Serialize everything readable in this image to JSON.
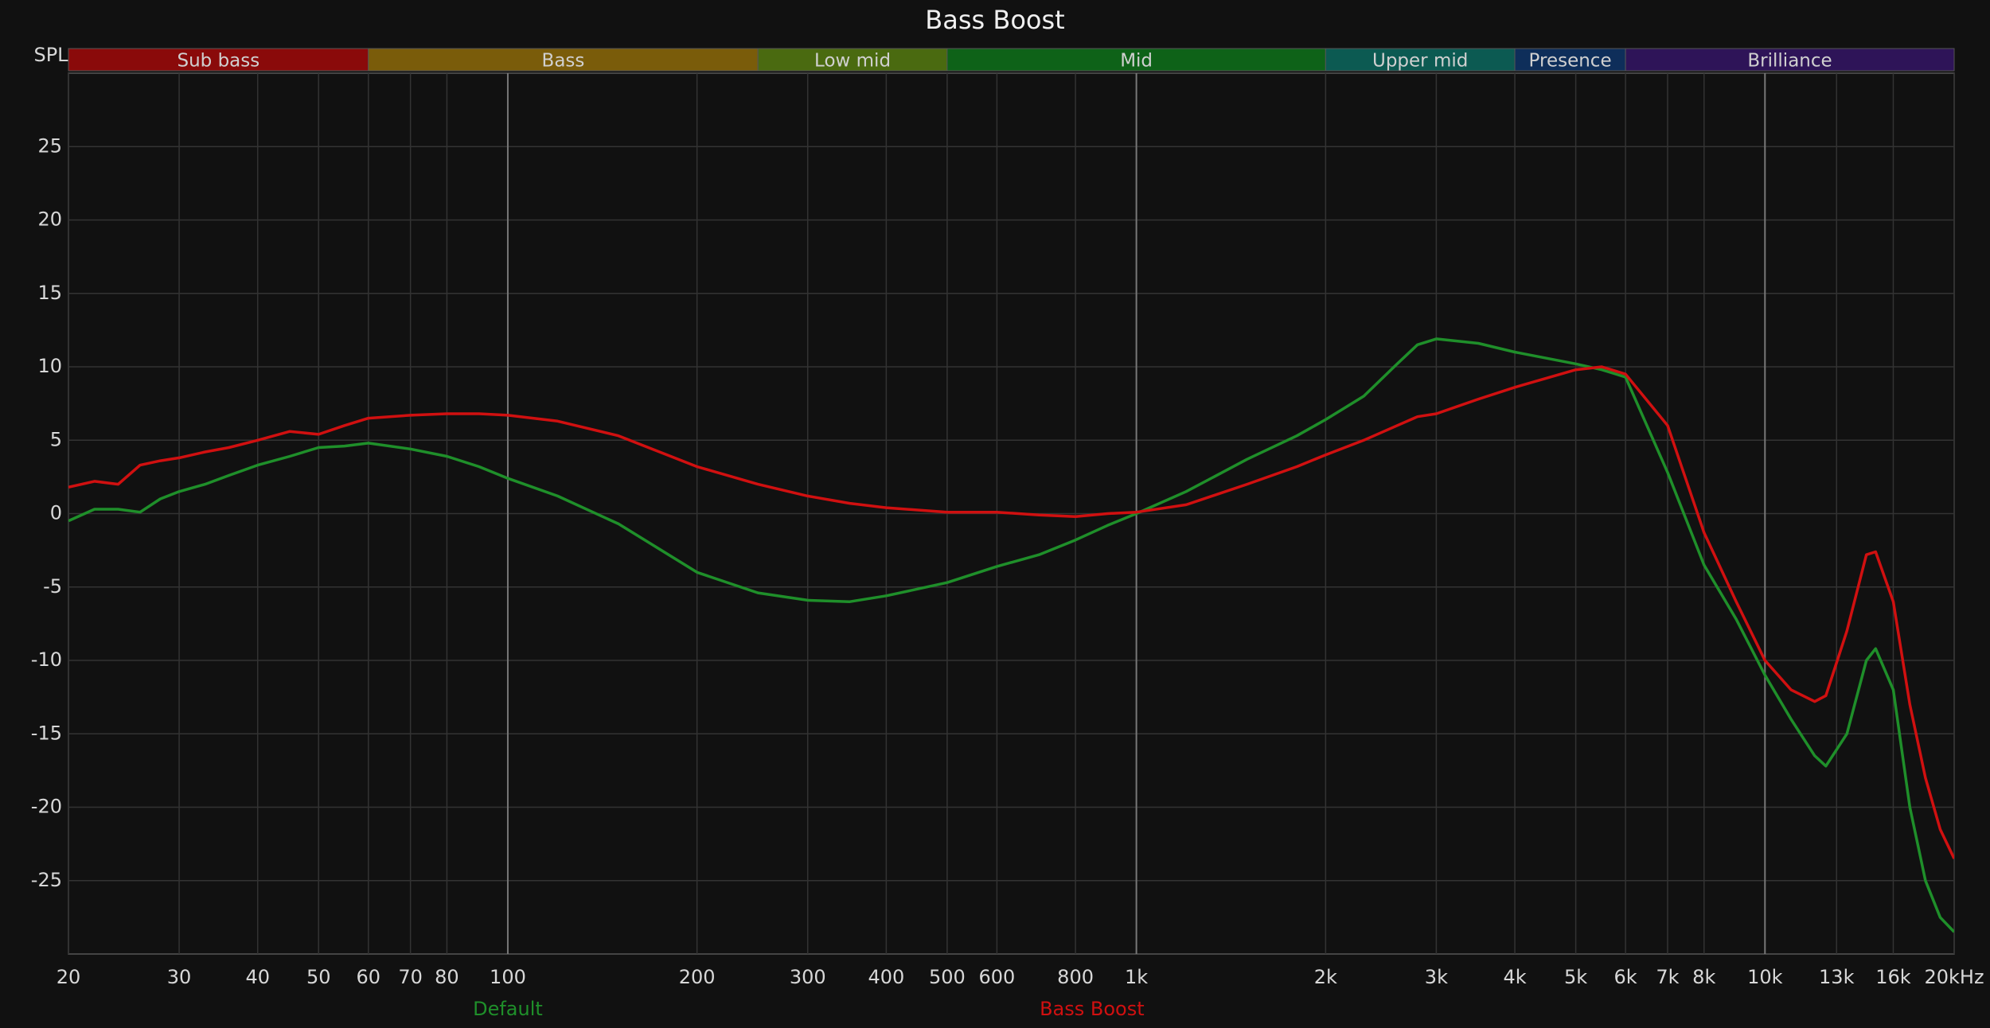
{
  "chart_data": {
    "type": "line",
    "title": "Bass Boost",
    "y_label": "SPL",
    "xscale": "log",
    "grid": true,
    "xlim": [
      20,
      20000
    ],
    "ylim": [
      -30,
      30
    ],
    "xticks": [
      20,
      30,
      40,
      50,
      60,
      70,
      80,
      100,
      200,
      300,
      400,
      500,
      600,
      800,
      {
        "value": 1000,
        "label": "1k"
      },
      {
        "value": 2000,
        "label": "2k"
      },
      {
        "value": 3000,
        "label": "3k"
      },
      {
        "value": 4000,
        "label": "4k"
      },
      {
        "value": 5000,
        "label": "5k"
      },
      {
        "value": 6000,
        "label": "6k"
      },
      {
        "value": 7000,
        "label": "7k"
      },
      {
        "value": 8000,
        "label": "8k"
      },
      {
        "value": 10000,
        "label": "10k"
      },
      {
        "value": 13000,
        "label": "13k"
      },
      {
        "value": 16000,
        "label": "16k"
      },
      {
        "value": 20000,
        "label": "20kHz"
      }
    ],
    "yticks": [
      -25,
      -20,
      -15,
      -10,
      -5,
      0,
      5,
      10,
      15,
      20,
      25
    ],
    "bands": [
      {
        "name": "Sub bass",
        "range": [
          20,
          60
        ],
        "color": "#8a0a0a"
      },
      {
        "name": "Bass",
        "range": [
          60,
          250
        ],
        "color": "#7a5c0a"
      },
      {
        "name": "Low mid",
        "range": [
          250,
          500
        ],
        "color": "#4a6a10"
      },
      {
        "name": "Mid",
        "range": [
          500,
          2000
        ],
        "color": "#0e6218"
      },
      {
        "name": "Upper mid",
        "range": [
          2000,
          4000
        ],
        "color": "#0c5a52"
      },
      {
        "name": "Presence",
        "range": [
          4000,
          6000
        ],
        "color": "#0e2e5a"
      },
      {
        "name": "Brilliance",
        "range": [
          6000,
          20000
        ],
        "color": "#2e1458"
      }
    ],
    "x": [
      20,
      22,
      24,
      26,
      28,
      30,
      33,
      36,
      40,
      45,
      50,
      55,
      60,
      70,
      80,
      90,
      100,
      120,
      150,
      200,
      250,
      300,
      350,
      400,
      500,
      600,
      700,
      800,
      900,
      1000,
      1200,
      1500,
      1800,
      2000,
      2300,
      2600,
      2800,
      3000,
      3500,
      4000,
      5000,
      5500,
      6000,
      7000,
      8000,
      9000,
      10000,
      11000,
      12000,
      12500,
      13500,
      14500,
      15000,
      16000,
      17000,
      18000,
      19000,
      20000
    ],
    "series": [
      {
        "name": "Default",
        "color": "#1f8f2a",
        "values": [
          -0.5,
          0.3,
          0.3,
          0.1,
          1.0,
          1.5,
          2.0,
          2.6,
          3.3,
          3.9,
          4.5,
          4.6,
          4.8,
          4.4,
          3.9,
          3.2,
          2.4,
          1.2,
          -0.7,
          -4.0,
          -5.4,
          -5.9,
          -6.0,
          -5.6,
          -4.7,
          -3.6,
          -2.8,
          -1.8,
          -0.8,
          0,
          1.5,
          3.7,
          5.3,
          6.4,
          8.0,
          10.2,
          11.5,
          11.9,
          11.6,
          11.0,
          10.2,
          9.8,
          9.3,
          2.8,
          -3.5,
          -7.2,
          -11.0,
          -14.0,
          -16.5,
          -17.2,
          -15.0,
          -10.0,
          -9.2,
          -12.0,
          -20.0,
          -25.0,
          -27.5,
          -28.5
        ]
      },
      {
        "name": "Bass Boost",
        "color": "#d01010",
        "values": [
          1.8,
          2.2,
          2.0,
          3.3,
          3.6,
          3.8,
          4.2,
          4.5,
          5.0,
          5.6,
          5.4,
          6.0,
          6.5,
          6.7,
          6.8,
          6.8,
          6.7,
          6.3,
          5.3,
          3.2,
          2.0,
          1.2,
          0.7,
          0.4,
          0.1,
          0.1,
          -0.1,
          -0.2,
          0,
          0.1,
          0.6,
          2.0,
          3.2,
          4.0,
          5.0,
          6.0,
          6.6,
          6.8,
          7.8,
          8.6,
          9.8,
          10.0,
          9.5,
          6.0,
          -1.3,
          -6.0,
          -10.0,
          -12.0,
          -12.8,
          -12.4,
          -8.0,
          -2.8,
          -2.6,
          -6.0,
          -13.0,
          -18.0,
          -21.5,
          -23.5
        ]
      }
    ]
  }
}
